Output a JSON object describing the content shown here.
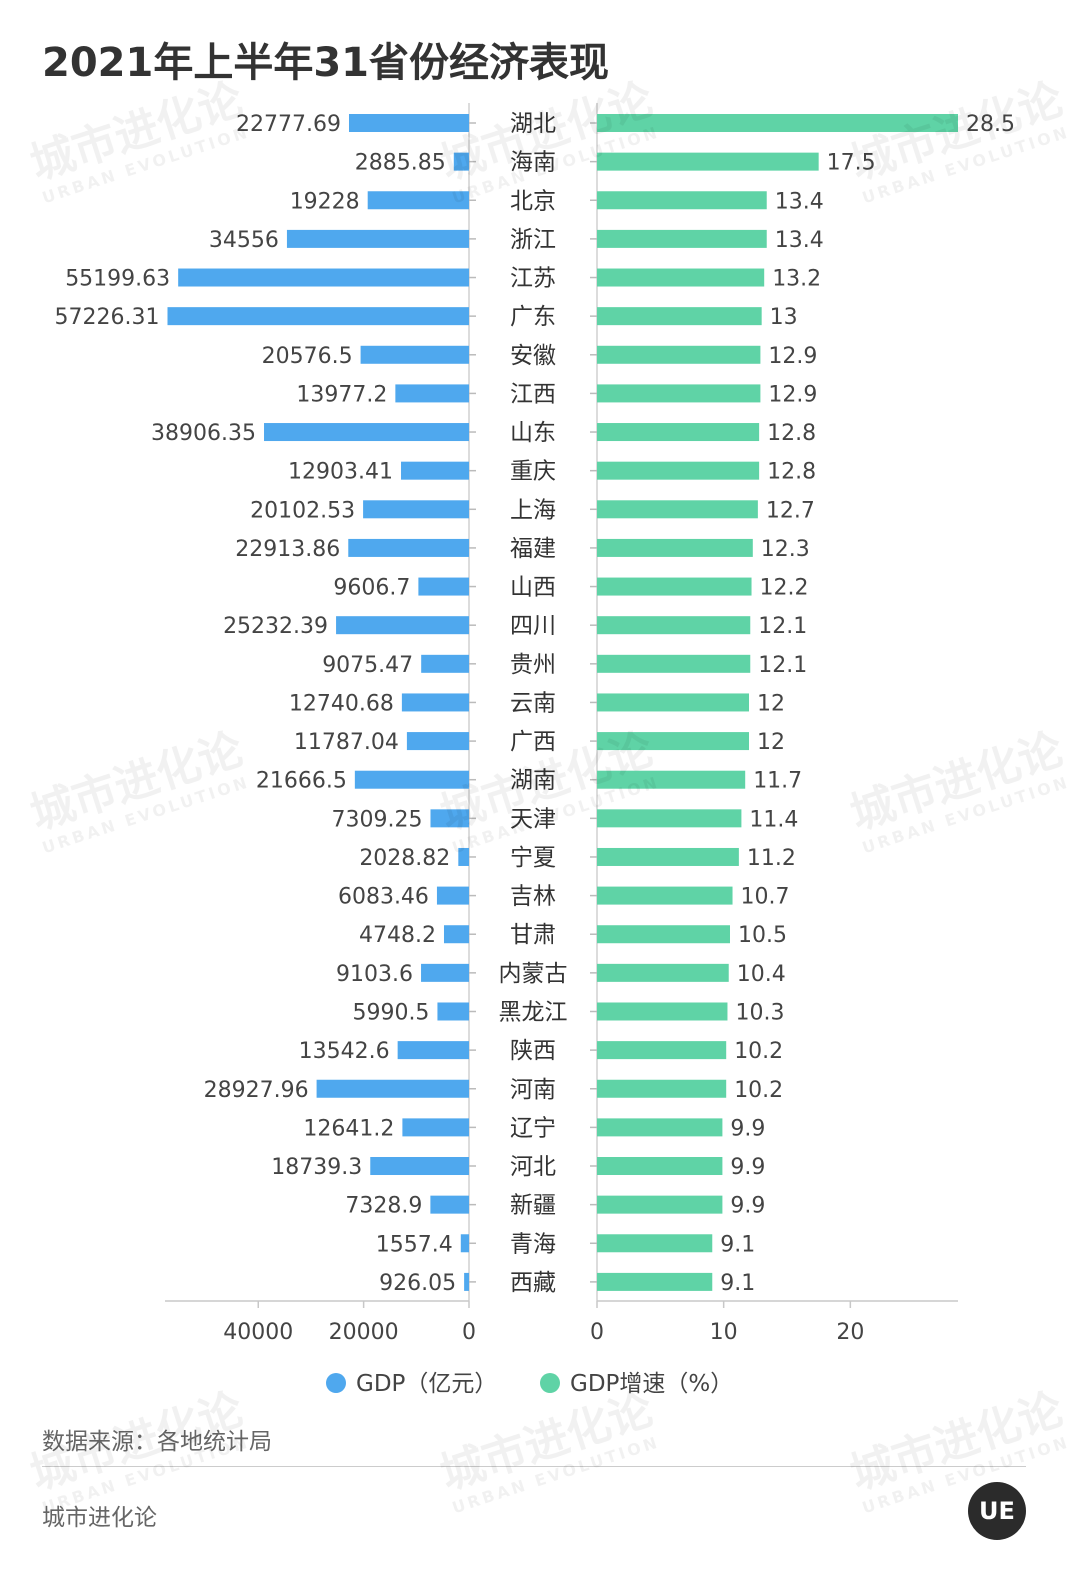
{
  "header": {
    "title": "2021年上半年31省份经济表现"
  },
  "chart_data": {
    "type": "bar",
    "title": "2021年上半年31省份经济表现",
    "categories": [
      "湖北",
      "海南",
      "北京",
      "浙江",
      "江苏",
      "广东",
      "安徽",
      "江西",
      "山东",
      "重庆",
      "上海",
      "福建",
      "山西",
      "四川",
      "贵州",
      "云南",
      "广西",
      "湖南",
      "天津",
      "宁夏",
      "吉林",
      "甘肃",
      "内蒙古",
      "黑龙江",
      "陕西",
      "河南",
      "辽宁",
      "河北",
      "新疆",
      "青海",
      "西藏"
    ],
    "series": [
      {
        "name": "GDP（亿元）",
        "color": "#4fa8ee",
        "direction": "left",
        "labels": [
          "22777.69",
          "2885.85",
          "19228",
          "34556",
          "55199.63",
          "57226.31",
          "20576.5",
          "13977.2",
          "38906.35",
          "12903.41",
          "20102.53",
          "22913.86",
          "9606.7",
          "25232.39",
          "9075.47",
          "12740.68",
          "11787.04",
          "21666.5",
          "7309.25",
          "2028.82",
          "6083.46",
          "4748.2",
          "9103.6",
          "5990.5",
          "13542.6",
          "28927.96",
          "12641.2",
          "18739.3",
          "7328.9",
          "1557.4",
          "926.05"
        ],
        "values": [
          22777.69,
          2885.85,
          19228,
          34556,
          55199.63,
          57226.31,
          20576.5,
          13977.2,
          38906.35,
          12903.41,
          20102.53,
          22913.86,
          9606.7,
          25232.39,
          9075.47,
          12740.68,
          11787.04,
          21666.5,
          7309.25,
          2028.82,
          6083.46,
          4748.2,
          9103.6,
          5990.5,
          13542.6,
          28927.96,
          12641.2,
          18739.3,
          7328.9,
          1557.4,
          926.05
        ],
        "xlim": [
          0,
          57700
        ],
        "ticks": [
          "40000",
          "20000",
          "0"
        ],
        "tick_values": [
          40000,
          20000,
          0
        ]
      },
      {
        "name": "GDP增速（%）",
        "color": "#5fd3a6",
        "direction": "right",
        "labels": [
          "28.5",
          "17.5",
          "13.4",
          "13.4",
          "13.2",
          "13",
          "12.9",
          "12.9",
          "12.8",
          "12.8",
          "12.7",
          "12.3",
          "12.2",
          "12.1",
          "12.1",
          "12",
          "12",
          "11.7",
          "11.4",
          "11.2",
          "10.7",
          "10.5",
          "10.4",
          "10.3",
          "10.2",
          "10.2",
          "9.9",
          "9.9",
          "9.9",
          "9.1",
          "9.1"
        ],
        "values": [
          28.5,
          17.5,
          13.4,
          13.4,
          13.2,
          13,
          12.9,
          12.9,
          12.8,
          12.8,
          12.7,
          12.3,
          12.2,
          12.1,
          12.1,
          12,
          12,
          11.7,
          11.4,
          11.2,
          10.7,
          10.5,
          10.4,
          10.3,
          10.2,
          10.2,
          9.9,
          9.9,
          9.9,
          9.1,
          9.1
        ],
        "xlim": [
          0,
          28.5
        ],
        "ticks": [
          "0",
          "10",
          "20"
        ],
        "tick_values": [
          0,
          10,
          20
        ]
      }
    ],
    "legend": "bottom-center"
  },
  "footer": {
    "source": "数据来源：各地统计局",
    "brand": "城市进化论",
    "logo_text": "UE"
  },
  "watermark": {
    "cn": "城市进化论",
    "en": "URBAN EVOLUTION"
  }
}
